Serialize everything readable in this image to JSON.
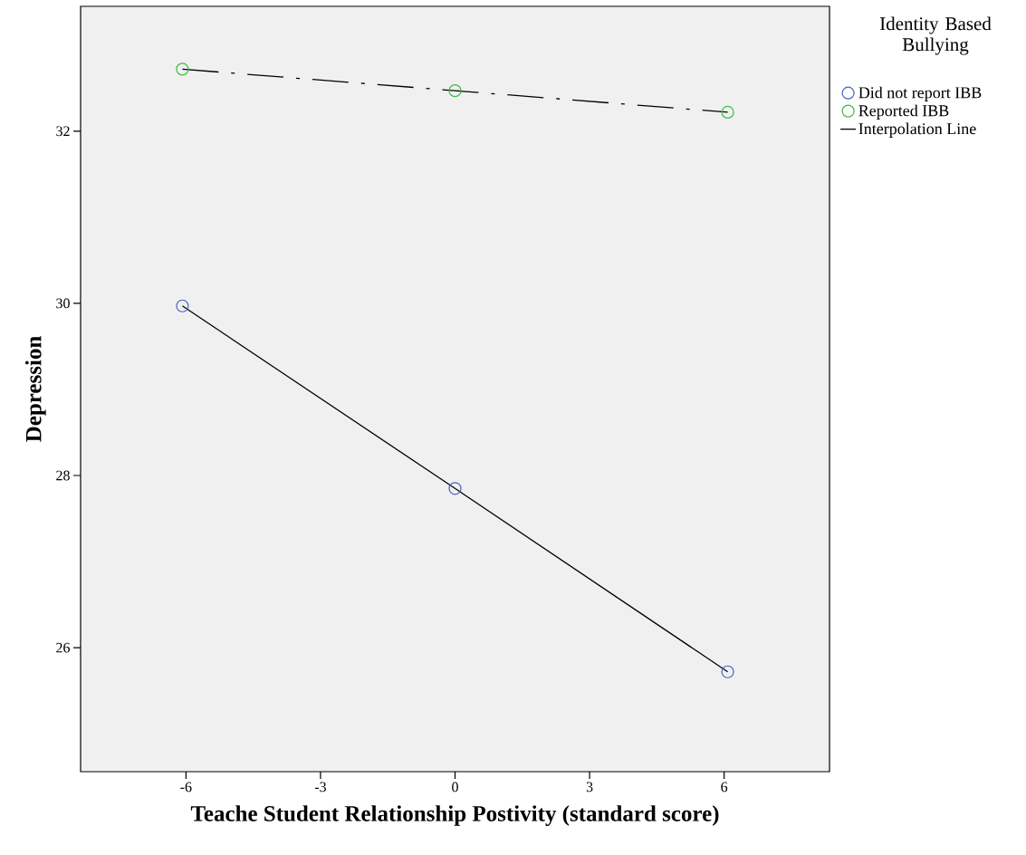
{
  "chart_data": {
    "type": "scatter",
    "xlabel": "Teache Student Relationship Postivity (standard score)",
    "ylabel": "Depression",
    "legend_title": "Identity Based Bullying",
    "legend": "top right",
    "grid": false,
    "xlim": [
      -8.35,
      8.35
    ],
    "xticks": [
      -6,
      -3,
      0,
      3,
      6
    ],
    "ylim": [
      24.56,
      33.45
    ],
    "yticks": [
      26,
      28,
      30,
      32
    ],
    "series": [
      {
        "name": "Did not report IBB",
        "color": "#4a5fc1",
        "marker": "circle",
        "x": [
          -6.08,
          0,
          6.08
        ],
        "values": [
          29.97,
          27.85,
          25.72
        ]
      },
      {
        "name": "Reported IBB",
        "color": "#3cbf3c",
        "marker": "circle",
        "x": [
          -6.08,
          0,
          6.08
        ],
        "values": [
          32.72,
          32.47,
          32.22
        ]
      },
      {
        "name": "Interpolation Line",
        "type": "line",
        "color": "#000000",
        "line_style": "solid",
        "marker": "none",
        "x": [
          -6.08,
          0,
          6.08
        ],
        "values": [
          29.97,
          27.85,
          25.72
        ]
      },
      {
        "type": "line",
        "color": "#000000",
        "line_style": "dashed",
        "marker": "none",
        "x": [
          -6.08,
          0,
          6.08
        ],
        "values": [
          32.72,
          32.47,
          32.22
        ]
      }
    ]
  }
}
